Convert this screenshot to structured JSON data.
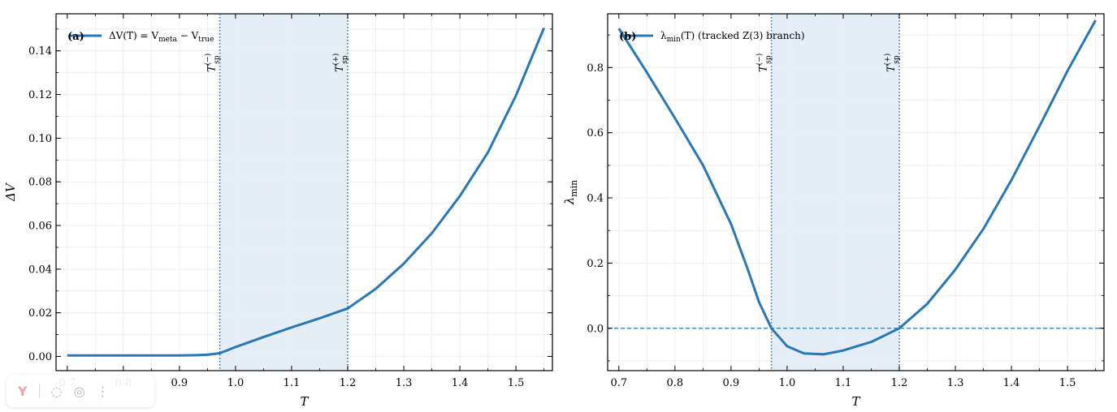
{
  "colors": {
    "line": "#2878b5",
    "shade": "#dce8f4",
    "grid": "#ececec"
  },
  "panels": [
    {
      "panel_tag": "(a)",
      "legend_label": "ΔV(T) = V",
      "legend_sub1": "meta",
      "legend_mid": " − V",
      "legend_sub2": "true",
      "ylabel": "ΔV",
      "xlabel": "T",
      "vlines": [
        {
          "label": "T",
          "sup": "(−)",
          "sub": "sp"
        },
        {
          "label": "T",
          "sup": "(+)",
          "sub": "sp"
        }
      ]
    },
    {
      "panel_tag": "(b)",
      "legend_label": "λ",
      "legend_sub1": "min",
      "legend_mid": "(T) (tracked Z(3) branch)",
      "legend_sub2": "",
      "ylabel": "λ",
      "ylabel_sub": "min",
      "xlabel": "T",
      "vlines": [
        {
          "label": "T",
          "sup": "(−)",
          "sub": "sp"
        },
        {
          "label": "T",
          "sup": "(+)",
          "sub": "sp"
        }
      ]
    }
  ],
  "chart_data": [
    {
      "type": "line",
      "title": "",
      "xlabel": "T",
      "ylabel": "ΔV",
      "xlim": [
        0.68,
        1.565
      ],
      "ylim": [
        -0.0065,
        0.157
      ],
      "xticks": [
        0.7,
        0.8,
        0.9,
        1.0,
        1.1,
        1.2,
        1.3,
        1.4,
        1.5
      ],
      "xtick_labels": [
        "0.7",
        "0.8",
        "0.9",
        "1.0",
        "1.1",
        "1.2",
        "1.3",
        "1.4",
        "1.5"
      ],
      "yticks": [
        0.0,
        0.02,
        0.04,
        0.06,
        0.08,
        0.1,
        0.12,
        0.14
      ],
      "ytick_labels": [
        "0.00",
        "0.02",
        "0.04",
        "0.06",
        "0.08",
        "0.10",
        "0.12",
        "0.14"
      ],
      "shaded_x_range": [
        0.972,
        1.2
      ],
      "vertical_lines_x": [
        0.972,
        1.2
      ],
      "horizontal_lines_y": [],
      "grid": true,
      "legend_position": "top-left",
      "series": [
        {
          "name": "ΔV(T) = Vmeta − Vtrue",
          "x": [
            0.7,
            0.75,
            0.8,
            0.85,
            0.9,
            0.93,
            0.95,
            0.96,
            0.972,
            1.0,
            1.05,
            1.1,
            1.15,
            1.2,
            1.25,
            1.3,
            1.35,
            1.4,
            1.45,
            1.5,
            1.55
          ],
          "y": [
            0.0005,
            0.0005,
            0.0005,
            0.0005,
            0.0005,
            0.0006,
            0.0008,
            0.0011,
            0.0015,
            0.0043,
            0.0089,
            0.0133,
            0.0175,
            0.022,
            0.031,
            0.0425,
            0.0565,
            0.0735,
            0.0935,
            0.1195,
            0.1505
          ]
        }
      ]
    },
    {
      "type": "line",
      "title": "",
      "xlabel": "T",
      "ylabel": "λmin",
      "xlim": [
        0.68,
        1.565
      ],
      "ylim": [
        -0.13,
        0.965
      ],
      "xticks": [
        0.7,
        0.8,
        0.9,
        1.0,
        1.1,
        1.2,
        1.3,
        1.4,
        1.5
      ],
      "xtick_labels": [
        "0.7",
        "0.8",
        "0.9",
        "1.0",
        "1.1",
        "1.2",
        "1.3",
        "1.4",
        "1.5"
      ],
      "yticks": [
        0.0,
        0.2,
        0.4,
        0.6,
        0.8
      ],
      "ytick_labels": [
        "0.0",
        "0.2",
        "0.4",
        "0.6",
        "0.8"
      ],
      "shaded_x_range": [
        0.972,
        1.2
      ],
      "vertical_lines_x": [
        0.972,
        1.2
      ],
      "horizontal_lines_y": [
        0.0
      ],
      "grid": true,
      "legend_position": "top-left",
      "series": [
        {
          "name": "λmin(T) (tracked Z(3) branch)",
          "x": [
            0.7,
            0.75,
            0.8,
            0.85,
            0.9,
            0.93,
            0.95,
            0.972,
            1.0,
            1.03,
            1.065,
            1.1,
            1.15,
            1.2,
            1.25,
            1.3,
            1.35,
            1.4,
            1.45,
            1.5,
            1.55
          ],
          "y": [
            0.92,
            0.785,
            0.645,
            0.5,
            0.32,
            0.18,
            0.08,
            0.0,
            -0.055,
            -0.077,
            -0.08,
            -0.068,
            -0.042,
            0.0,
            0.075,
            0.18,
            0.305,
            0.455,
            0.62,
            0.79,
            0.945
          ]
        }
      ]
    }
  ],
  "toolbar": {
    "items": [
      "Y",
      "◌",
      "◎",
      "⋮"
    ]
  }
}
